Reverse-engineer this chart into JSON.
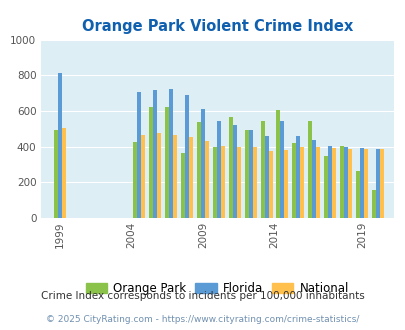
{
  "title": "Orange Park Violent Crime Index",
  "subtitle": "Crime Index corresponds to incidents per 100,000 inhabitants",
  "copyright": "© 2025 CityRating.com - https://www.cityrating.com/crime-statistics/",
  "title_color": "#1060b0",
  "subtitle_color": "#333333",
  "copyright_color": "#7090b0",
  "background_color": "#ddeef4",
  "fig_background": "#ffffff",
  "ylim": [
    0,
    1000
  ],
  "yticks": [
    0,
    200,
    400,
    600,
    800,
    1000
  ],
  "years": [
    2000,
    2005,
    2006,
    2007,
    2008,
    2009,
    2010,
    2011,
    2012,
    2013,
    2014,
    2015,
    2016,
    2017,
    2018,
    2019,
    2020
  ],
  "orange_park": [
    490,
    425,
    620,
    620,
    365,
    540,
    400,
    565,
    490,
    545,
    605,
    420,
    545,
    345,
    405,
    260,
    155
  ],
  "florida": [
    810,
    705,
    715,
    725,
    690,
    610,
    545,
    520,
    490,
    460,
    545,
    460,
    435,
    405,
    395,
    390,
    385
  ],
  "national": [
    505,
    465,
    475,
    465,
    455,
    430,
    405,
    395,
    400,
    375,
    380,
    395,
    400,
    390,
    385,
    385,
    385
  ],
  "color_orange_park": "#8bc34a",
  "color_florida": "#5b9bd5",
  "color_national": "#ffc04d",
  "bar_width": 0.25,
  "xtick_labels": [
    "1999",
    "2004",
    "2009",
    "2014",
    "2019"
  ],
  "xtick_positions": [
    2000,
    2004.5,
    2009,
    2013.5,
    2019
  ],
  "legend_labels": [
    "Orange Park",
    "Florida",
    "National"
  ]
}
